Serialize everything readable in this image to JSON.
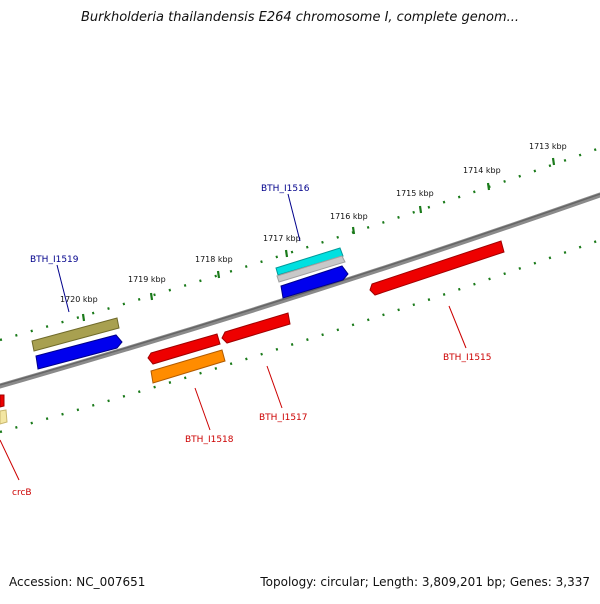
{
  "title": "Burkholderia thailandensis E264 chromosome I, complete genom...",
  "footer": {
    "accession": "Accession: NC_007651",
    "summary": "Topology: circular; Length: 3,809,201 bp; Genes: 3,337"
  },
  "ticks": [
    {
      "label": "1713 kbp"
    },
    {
      "label": "1714 kbp"
    },
    {
      "label": "1715 kbp"
    },
    {
      "label": "1716 kbp"
    },
    {
      "label": "1717 kbp"
    },
    {
      "label": "1718 kbp"
    },
    {
      "label": "1719 kbp"
    },
    {
      "label": "1720 kbp"
    }
  ],
  "genes": [
    {
      "label": "BTH_I1516",
      "color": "#00008b"
    },
    {
      "label": "BTH_I1519",
      "color": "#00008b"
    },
    {
      "label": "BTH_I1515",
      "color": "#cc0000"
    },
    {
      "label": "BTH_I1517",
      "color": "#cc0000"
    },
    {
      "label": "BTH_I1518",
      "color": "#cc0000"
    },
    {
      "label": "crcB",
      "color": "#cc0000"
    }
  ],
  "colors": {
    "backbone": "#7a7a7a",
    "tick": "#1a7a1a",
    "forward_gene": "#0000ee",
    "reverse_gene": "#ee0000",
    "olive": "#a8a050",
    "cyan": "#00e0e0",
    "orange": "#ff8c00"
  }
}
